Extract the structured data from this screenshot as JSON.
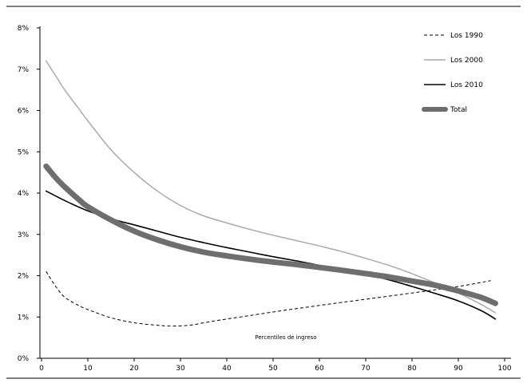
{
  "chart_data": {
    "type": "line",
    "title": "",
    "xlabel": "Percentiles de ingreso",
    "ylabel": "",
    "xlim": [
      0,
      100
    ],
    "ylim": [
      0,
      8
    ],
    "x_ticks": [
      "0",
      "10",
      "20",
      "30",
      "40",
      "50",
      "60",
      "70",
      "80",
      "90",
      "100"
    ],
    "y_ticks": [
      "0%",
      "1%",
      "2%",
      "3%",
      "4%",
      "5%",
      "6%",
      "7%",
      "8%"
    ],
    "grid": false,
    "legend_position": "top-right",
    "series": [
      {
        "name": "Los 1990",
        "color": "#000000",
        "style": "dashed",
        "width": 1,
        "points": [
          [
            1,
            2.1
          ],
          [
            3,
            1.75
          ],
          [
            5,
            1.48
          ],
          [
            8,
            1.28
          ],
          [
            10,
            1.18
          ],
          [
            15,
            0.98
          ],
          [
            20,
            0.86
          ],
          [
            25,
            0.8
          ],
          [
            28,
            0.78
          ],
          [
            32,
            0.8
          ],
          [
            36,
            0.88
          ],
          [
            40,
            0.95
          ],
          [
            50,
            1.12
          ],
          [
            60,
            1.28
          ],
          [
            70,
            1.43
          ],
          [
            80,
            1.58
          ],
          [
            90,
            1.74
          ],
          [
            97,
            1.88
          ]
        ]
      },
      {
        "name": "Los 2000",
        "color": "#aaaaaa",
        "style": "solid",
        "width": 1.5,
        "points": [
          [
            1,
            7.2
          ],
          [
            3,
            6.85
          ],
          [
            5,
            6.5
          ],
          [
            8,
            6.05
          ],
          [
            10,
            5.75
          ],
          [
            15,
            5.05
          ],
          [
            20,
            4.5
          ],
          [
            25,
            4.05
          ],
          [
            30,
            3.7
          ],
          [
            35,
            3.45
          ],
          [
            40,
            3.28
          ],
          [
            45,
            3.12
          ],
          [
            50,
            2.98
          ],
          [
            55,
            2.85
          ],
          [
            60,
            2.72
          ],
          [
            65,
            2.58
          ],
          [
            70,
            2.42
          ],
          [
            75,
            2.25
          ],
          [
            80,
            2.05
          ],
          [
            85,
            1.82
          ],
          [
            90,
            1.58
          ],
          [
            95,
            1.3
          ],
          [
            98,
            1.1
          ]
        ]
      },
      {
        "name": "Los 2010",
        "color": "#000000",
        "style": "solid",
        "width": 1.6,
        "points": [
          [
            1,
            4.05
          ],
          [
            5,
            3.82
          ],
          [
            10,
            3.57
          ],
          [
            15,
            3.38
          ],
          [
            20,
            3.23
          ],
          [
            25,
            3.08
          ],
          [
            30,
            2.93
          ],
          [
            35,
            2.8
          ],
          [
            40,
            2.68
          ],
          [
            45,
            2.57
          ],
          [
            50,
            2.46
          ],
          [
            55,
            2.36
          ],
          [
            60,
            2.25
          ],
          [
            65,
            2.14
          ],
          [
            70,
            2.03
          ],
          [
            75,
            1.9
          ],
          [
            80,
            1.74
          ],
          [
            85,
            1.57
          ],
          [
            90,
            1.39
          ],
          [
            95,
            1.15
          ],
          [
            98,
            0.95
          ]
        ]
      },
      {
        "name": "Total",
        "color": "#6e6e6e",
        "style": "solid",
        "width": 7,
        "points": [
          [
            1,
            4.65
          ],
          [
            3,
            4.38
          ],
          [
            5,
            4.15
          ],
          [
            8,
            3.85
          ],
          [
            10,
            3.67
          ],
          [
            15,
            3.35
          ],
          [
            20,
            3.08
          ],
          [
            25,
            2.87
          ],
          [
            30,
            2.7
          ],
          [
            35,
            2.57
          ],
          [
            40,
            2.48
          ],
          [
            45,
            2.4
          ],
          [
            50,
            2.33
          ],
          [
            55,
            2.27
          ],
          [
            60,
            2.2
          ],
          [
            65,
            2.13
          ],
          [
            70,
            2.05
          ],
          [
            75,
            1.97
          ],
          [
            80,
            1.87
          ],
          [
            85,
            1.77
          ],
          [
            90,
            1.63
          ],
          [
            95,
            1.47
          ],
          [
            98,
            1.33
          ]
        ]
      }
    ]
  }
}
